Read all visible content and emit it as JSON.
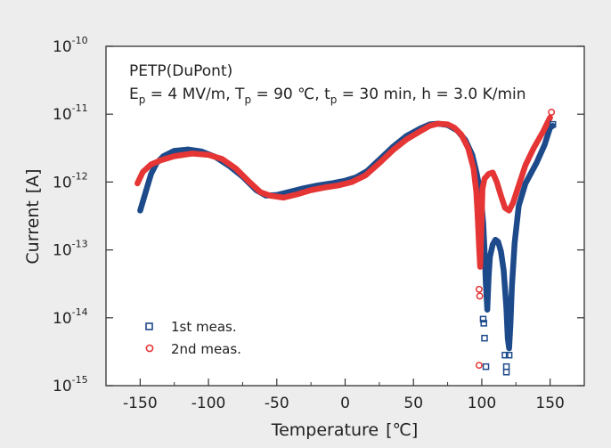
{
  "chart_data": {
    "type": "line",
    "title": "",
    "xlabel": "Temperature",
    "xlabel_unit": "[℃]",
    "ylabel": "Current",
    "ylabel_unit": "[A]",
    "xlim": [
      -175,
      175
    ],
    "ylim_log10": [
      -15,
      -10
    ],
    "xticks": [
      -150,
      -100,
      -50,
      0,
      50,
      100,
      150
    ],
    "xtick_labels": [
      "-150",
      "-100",
      "-50",
      "0",
      "50",
      "100",
      "150"
    ],
    "yticks_log10": [
      -15,
      -14,
      -13,
      -12,
      -11,
      -10
    ],
    "ytick_labels": [
      {
        "base": "10",
        "exp": "-15"
      },
      {
        "base": "10",
        "exp": "-14"
      },
      {
        "base": "10",
        "exp": "-13"
      },
      {
        "base": "10",
        "exp": "-12"
      },
      {
        "base": "10",
        "exp": "-11"
      },
      {
        "base": "10",
        "exp": "-10"
      }
    ],
    "annotation": {
      "line1": "PETP(DuPont)",
      "line2_parts": [
        {
          "t": "E",
          "sub": "p",
          "rest": " = 4 MV/m, "
        },
        {
          "t": "T",
          "sub": "p",
          "rest": " = 90 ℃, "
        },
        {
          "t": "t",
          "sub": "p",
          "rest": " = 30 min, h = 3.0 K/min"
        }
      ]
    },
    "series": [
      {
        "name": "1st meas.",
        "color": "#1d4a8a",
        "marker": "square",
        "curve": [
          [
            -150,
            -12.42
          ],
          [
            -146,
            -12.15
          ],
          [
            -142,
            -11.88
          ],
          [
            -138,
            -11.72
          ],
          [
            -133,
            -11.62
          ],
          [
            -125,
            -11.54
          ],
          [
            -115,
            -11.52
          ],
          [
            -105,
            -11.55
          ],
          [
            -95,
            -11.63
          ],
          [
            -85,
            -11.76
          ],
          [
            -75,
            -11.92
          ],
          [
            -65,
            -12.12
          ],
          [
            -58,
            -12.2
          ],
          [
            -50,
            -12.19
          ],
          [
            -40,
            -12.14
          ],
          [
            -30,
            -12.09
          ],
          [
            -20,
            -12.05
          ],
          [
            -10,
            -12.02
          ],
          [
            0,
            -11.98
          ],
          [
            8,
            -11.93
          ],
          [
            16,
            -11.84
          ],
          [
            25,
            -11.67
          ],
          [
            35,
            -11.48
          ],
          [
            45,
            -11.32
          ],
          [
            55,
            -11.21
          ],
          [
            62,
            -11.15
          ],
          [
            68,
            -11.14
          ],
          [
            75,
            -11.16
          ],
          [
            82,
            -11.24
          ],
          [
            88,
            -11.38
          ],
          [
            93,
            -11.6
          ],
          [
            96,
            -11.85
          ],
          [
            99,
            -12.15
          ],
          [
            101,
            -12.6
          ],
          [
            102,
            -13.0
          ],
          [
            103,
            -13.5
          ],
          [
            104,
            -13.88
          ],
          [
            105,
            -13.4
          ],
          [
            106,
            -13.1
          ],
          [
            108,
            -12.92
          ],
          [
            110,
            -12.85
          ],
          [
            112,
            -12.88
          ],
          [
            114,
            -13.02
          ],
          [
            116,
            -13.3
          ],
          [
            118,
            -13.85
          ],
          [
            119,
            -14.3
          ],
          [
            120,
            -14.45
          ],
          [
            121,
            -14.1
          ],
          [
            122,
            -13.55
          ],
          [
            124,
            -12.9
          ],
          [
            127,
            -12.35
          ],
          [
            132,
            -12.02
          ],
          [
            140,
            -11.72
          ],
          [
            146,
            -11.45
          ],
          [
            150,
            -11.2
          ],
          [
            152,
            -11.17
          ]
        ],
        "points": [
          [
            101,
            -14.02
          ],
          [
            101.5,
            -14.08
          ],
          [
            102,
            -14.3
          ],
          [
            103,
            -14.72
          ],
          [
            117,
            -14.55
          ],
          [
            120,
            -14.55
          ],
          [
            118,
            -14.72
          ],
          [
            118,
            -14.8
          ],
          [
            152,
            -11.15
          ]
        ]
      },
      {
        "name": "2nd meas.",
        "color": "#e53535",
        "marker": "circle",
        "curve": [
          [
            -152,
            -12.02
          ],
          [
            -148,
            -11.85
          ],
          [
            -142,
            -11.74
          ],
          [
            -135,
            -11.68
          ],
          [
            -125,
            -11.62
          ],
          [
            -112,
            -11.58
          ],
          [
            -100,
            -11.6
          ],
          [
            -90,
            -11.66
          ],
          [
            -80,
            -11.8
          ],
          [
            -70,
            -12.0
          ],
          [
            -62,
            -12.15
          ],
          [
            -55,
            -12.2
          ],
          [
            -45,
            -12.23
          ],
          [
            -35,
            -12.18
          ],
          [
            -25,
            -12.12
          ],
          [
            -15,
            -12.08
          ],
          [
            -5,
            -12.05
          ],
          [
            5,
            -12.0
          ],
          [
            15,
            -11.9
          ],
          [
            25,
            -11.72
          ],
          [
            35,
            -11.53
          ],
          [
            45,
            -11.37
          ],
          [
            55,
            -11.25
          ],
          [
            62,
            -11.17
          ],
          [
            68,
            -11.14
          ],
          [
            75,
            -11.15
          ],
          [
            80,
            -11.2
          ],
          [
            85,
            -11.3
          ],
          [
            90,
            -11.5
          ],
          [
            94,
            -11.8
          ],
          [
            96,
            -12.15
          ],
          [
            97,
            -12.5
          ],
          [
            98,
            -12.95
          ],
          [
            98.8,
            -13.25
          ],
          [
            99.5,
            -12.8
          ],
          [
            100.5,
            -12.1
          ],
          [
            102,
            -11.95
          ],
          [
            105,
            -11.88
          ],
          [
            108,
            -11.86
          ],
          [
            111,
            -12.0
          ],
          [
            114,
            -12.2
          ],
          [
            117,
            -12.38
          ],
          [
            120,
            -12.42
          ],
          [
            123,
            -12.3
          ],
          [
            127,
            -12.05
          ],
          [
            132,
            -11.75
          ],
          [
            138,
            -11.5
          ],
          [
            145,
            -11.25
          ],
          [
            150,
            -11.05
          ]
        ],
        "points": [
          [
            98,
            -13.58
          ],
          [
            98.5,
            -13.68
          ],
          [
            98,
            -14.7
          ],
          [
            151,
            -10.97
          ]
        ]
      }
    ]
  }
}
